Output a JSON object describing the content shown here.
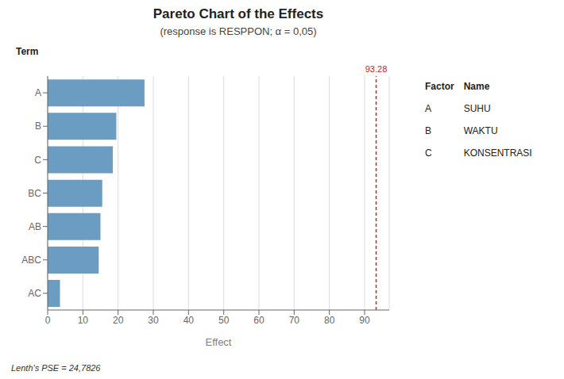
{
  "chart_data": {
    "type": "bar",
    "orientation": "horizontal",
    "title": "Pareto Chart of the Effects",
    "subtitle": "(response is RESPPON; α = 0,05)",
    "x_label": "Effect",
    "y_label": "Term",
    "categories": [
      "A",
      "B",
      "C",
      "BC",
      "AB",
      "ABC",
      "AC"
    ],
    "values": [
      27.5,
      19.5,
      18.5,
      15.5,
      15.0,
      14.5,
      3.5
    ],
    "color": "#6b9dc2",
    "xlim": [
      0,
      97
    ],
    "xticks": [
      0,
      10,
      20,
      30,
      40,
      50,
      60,
      70,
      80,
      90
    ],
    "grid": true,
    "reference_line": {
      "x": 93.28,
      "label": "93.28",
      "color": "#cc2222"
    },
    "annotations": [
      "Lenth's PSE = 24,7826"
    ],
    "factor_table": {
      "header": [
        "Factor",
        "Name"
      ],
      "rows": [
        [
          "A",
          "SUHU"
        ],
        [
          "B",
          "WAKTU"
        ],
        [
          "C",
          "KONSENTRASI"
        ]
      ]
    }
  }
}
